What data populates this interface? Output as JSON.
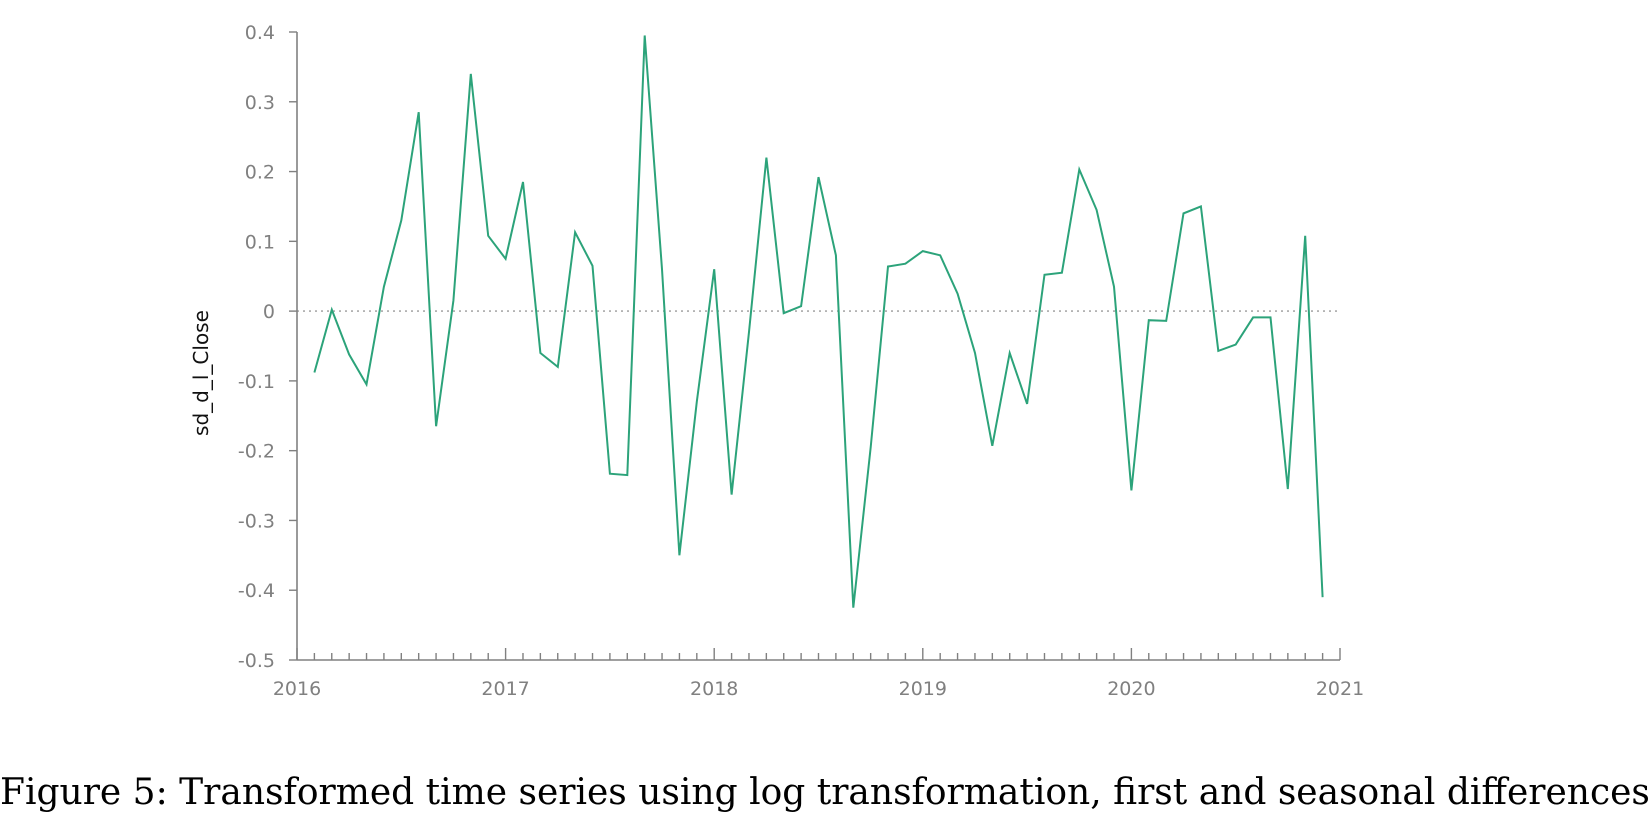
{
  "caption": "Figure 5: Transformed time series using log transformation, first and seasonal differences",
  "chart_data": {
    "type": "line",
    "title": "",
    "xlabel": "",
    "ylabel": "sd_d_l_Close",
    "xlim": [
      2016,
      2021
    ],
    "ylim": [
      -0.5,
      0.4
    ],
    "x_ticks": [
      "2016",
      "2017",
      "2018",
      "2019",
      "2020",
      "2021"
    ],
    "y_ticks": [
      "0.4",
      "0.3",
      "0.2",
      "0.1",
      "0",
      "-0.1",
      "-0.2",
      "-0.3",
      "-0.4",
      "-0.5"
    ],
    "zero_line": "dotted",
    "grid": false,
    "line_color": "#2ca37a",
    "series": [
      {
        "x": [
          "2016-02",
          "2016-03",
          "2016-04",
          "2016-05",
          "2016-06",
          "2016-07",
          "2016-08",
          "2016-09",
          "2016-10",
          "2016-11",
          "2016-12",
          "2017-01",
          "2017-02",
          "2017-03",
          "2017-04",
          "2017-05",
          "2017-06",
          "2017-07",
          "2017-08",
          "2017-09",
          "2017-10",
          "2017-11",
          "2017-12",
          "2018-01",
          "2018-02",
          "2018-03",
          "2018-04",
          "2018-05",
          "2018-06",
          "2018-07",
          "2018-08",
          "2018-09",
          "2018-10",
          "2018-11",
          "2018-12",
          "2019-01",
          "2019-02",
          "2019-03",
          "2019-04",
          "2019-05",
          "2019-06",
          "2019-07",
          "2019-08",
          "2019-09",
          "2019-10",
          "2019-11",
          "2019-12",
          "2020-01",
          "2020-02",
          "2020-03",
          "2020-04",
          "2020-05",
          "2020-06",
          "2020-07",
          "2020-08",
          "2020-09",
          "2020-10",
          "2020-11",
          "2020-12"
        ],
        "values": [
          -0.088,
          0.002,
          -0.062,
          -0.105,
          0.035,
          0.13,
          0.285,
          -0.165,
          0.015,
          0.34,
          0.108,
          0.075,
          0.185,
          -0.06,
          -0.08,
          0.113,
          0.065,
          -0.233,
          -0.235,
          0.395,
          0.06,
          -0.35,
          -0.13,
          0.06,
          -0.263,
          -0.03,
          0.22,
          -0.003,
          0.007,
          0.192,
          0.08,
          -0.425,
          -0.195,
          0.064,
          0.068,
          0.086,
          0.08,
          0.025,
          -0.06,
          -0.193,
          -0.06,
          -0.133,
          0.052,
          0.055,
          0.203,
          0.145,
          0.035,
          -0.257,
          -0.013,
          -0.014,
          0.14,
          0.15,
          -0.057,
          -0.048,
          -0.009,
          -0.009,
          -0.255,
          0.108,
          -0.41
        ]
      }
    ]
  }
}
